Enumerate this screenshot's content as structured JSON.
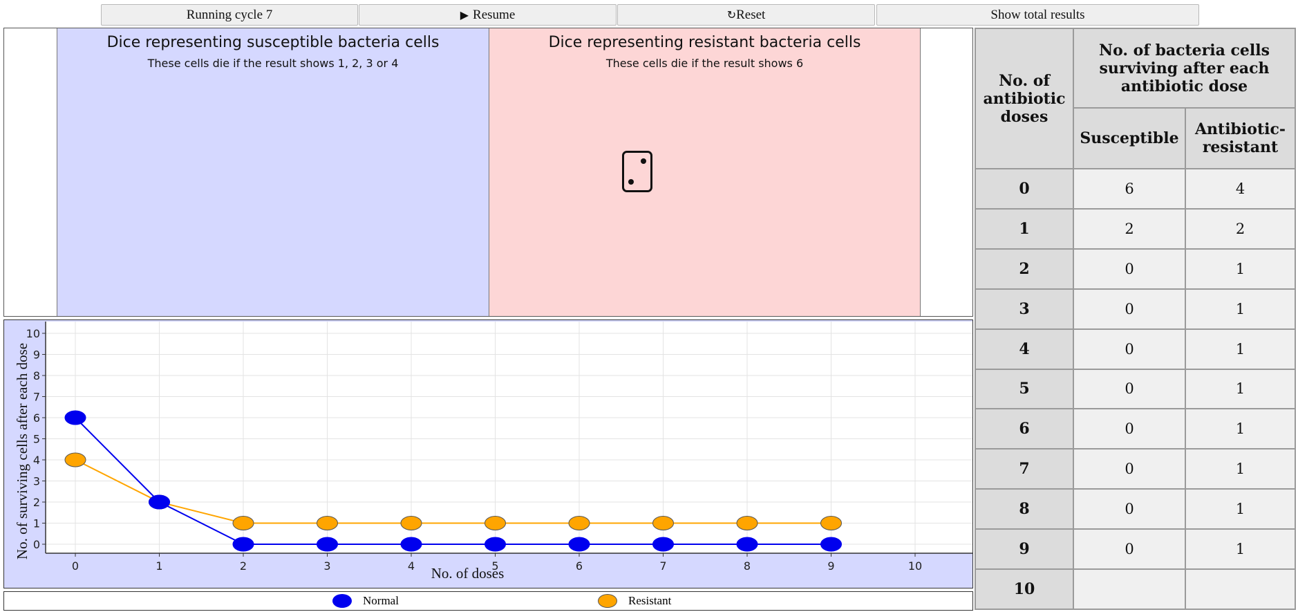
{
  "toolbar": {
    "status_label": "Running cycle 7",
    "resume_label": "Resume",
    "reset_label": "Reset",
    "total_label": "Show total results"
  },
  "dice": {
    "susceptible_title": "Dice representing susceptible bacteria cells",
    "susceptible_sub": "These cells die if the result shows 1, 2, 3 or 4",
    "resistant_title": "Dice representing resistant bacteria cells",
    "resistant_sub": "These cells die if the result shows 6",
    "die_face": 2
  },
  "table": {
    "col_doses": "No. of antibiotic doses",
    "col_group": "No. of bacteria cells surviving after each antibiotic dose",
    "col_susceptible": "Susceptible",
    "col_resistant": "Antibiotic-resistant",
    "rows": [
      {
        "dose": "0",
        "susceptible": "6",
        "resistant": "4"
      },
      {
        "dose": "1",
        "susceptible": "2",
        "resistant": "2"
      },
      {
        "dose": "2",
        "susceptible": "0",
        "resistant": "1"
      },
      {
        "dose": "3",
        "susceptible": "0",
        "resistant": "1"
      },
      {
        "dose": "4",
        "susceptible": "0",
        "resistant": "1"
      },
      {
        "dose": "5",
        "susceptible": "0",
        "resistant": "1"
      },
      {
        "dose": "6",
        "susceptible": "0",
        "resistant": "1"
      },
      {
        "dose": "7",
        "susceptible": "0",
        "resistant": "1"
      },
      {
        "dose": "8",
        "susceptible": "0",
        "resistant": "1"
      },
      {
        "dose": "9",
        "susceptible": "0",
        "resistant": "1"
      },
      {
        "dose": "10",
        "susceptible": "",
        "resistant": ""
      }
    ]
  },
  "colors": {
    "normal": "#0000ee",
    "resistant": "#ffa500",
    "susceptible_panel": "#d5d8ff",
    "resistant_panel": "#fdd6d6"
  },
  "chart_data": {
    "type": "line",
    "xlabel": "No. of doses",
    "ylabel": "No. of surviving cells after each dose",
    "x": [
      0,
      1,
      2,
      3,
      4,
      5,
      6,
      7,
      8,
      9
    ],
    "xlim": [
      0,
      10
    ],
    "ylim": [
      0,
      10
    ],
    "x_ticks": [
      0,
      1,
      2,
      3,
      4,
      5,
      6,
      7,
      8,
      9,
      10
    ],
    "y_ticks": [
      0,
      1,
      2,
      3,
      4,
      5,
      6,
      7,
      8,
      9,
      10
    ],
    "grid": true,
    "legend_position": "bottom",
    "series": [
      {
        "name": "Normal",
        "color": "#0000ee",
        "values": [
          6,
          2,
          0,
          0,
          0,
          0,
          0,
          0,
          0,
          0
        ]
      },
      {
        "name": "Resistant",
        "color": "#ffa500",
        "values": [
          4,
          2,
          1,
          1,
          1,
          1,
          1,
          1,
          1,
          1
        ]
      }
    ]
  }
}
